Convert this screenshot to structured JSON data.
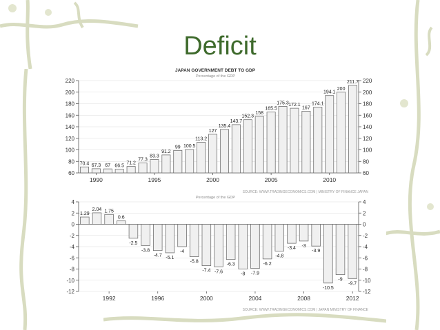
{
  "slide": {
    "title": "Deficit"
  },
  "colors": {
    "title": "#3e6a2c",
    "vine": "#d8dcc0",
    "bar_stroke": "#707070",
    "bar_fill": "#f0f0f0"
  },
  "chart_data": [
    {
      "type": "bar",
      "title": "JAPAN GOVERNMENT DEBT TO GDP",
      "subtitle": "Percentage of the GDP",
      "source": "SOURCE: WWW.TRADINGECONOMICS.COM | MINISTRY OF FINANCE JAPAN",
      "x": [
        1989,
        1990,
        1991,
        1992,
        1993,
        1994,
        1995,
        1996,
        1997,
        1998,
        1999,
        2000,
        2001,
        2002,
        2003,
        2004,
        2005,
        2006,
        2007,
        2008,
        2009,
        2010,
        2011,
        2012
      ],
      "values": [
        70.4,
        67.3,
        67,
        66.5,
        71.2,
        77.3,
        83.3,
        91.2,
        99,
        100.5,
        113.2,
        127,
        135.4,
        143.7,
        152.3,
        158,
        165.5,
        175.3,
        172.1,
        167,
        174.1,
        194.1,
        200,
        211.7
      ],
      "labels": [
        "70.4",
        "67.3",
        "67",
        "66.5",
        "71.2",
        "77.3",
        "83.3",
        "91.2",
        "99",
        "100.5",
        "113.2",
        "127",
        "135.4",
        "143.7",
        "152.3",
        "158",
        "165.5",
        "175.3",
        "172.1",
        "167",
        "174.1",
        "194.1",
        "200",
        "211.7"
      ],
      "xticks": [
        "1990",
        "1995",
        "2000",
        "2005",
        "2010"
      ],
      "xtick_values": [
        1990,
        1995,
        2000,
        2005,
        2010
      ],
      "yticks": [
        "60",
        "80",
        "100",
        "120",
        "140",
        "160",
        "180",
        "200",
        "220"
      ],
      "ylim": [
        60,
        220
      ]
    },
    {
      "type": "bar",
      "title": "",
      "subtitle": "Percentage of the GDP",
      "source": "SOURCE: WWW.TRADINGECONOMICS.COM | JAPAN MINISTRY OF FINANCE",
      "x": [
        1990,
        1991,
        1992,
        1993,
        1994,
        1995,
        1996,
        1997,
        1998,
        1999,
        2000,
        2001,
        2002,
        2003,
        2004,
        2005,
        2006,
        2007,
        2008,
        2009,
        2010,
        2011,
        2012
      ],
      "values": [
        1.29,
        2.04,
        1.75,
        0.6,
        -2.5,
        -3.8,
        -4.7,
        -5.1,
        -4,
        -5.8,
        -7.4,
        -7.6,
        -6.3,
        -8,
        -7.9,
        -6.2,
        -4.8,
        -3.4,
        -3,
        -3.9,
        -10.5,
        -9,
        -9.7
      ],
      "labels": [
        "1.29",
        "2.04",
        "1.75",
        "0.6",
        "-2.5",
        "-3.8",
        "-4.7",
        "-5.1",
        "-4",
        "-5.8",
        "-7.4",
        "-7.6",
        "-6.3",
        "-8",
        "-7.9",
        "-6.2",
        "-4.8",
        "-3.4",
        "-3",
        "-3.9",
        "-10.5",
        "-9",
        "-9.7"
      ],
      "xticks": [
        "1992",
        "1996",
        "2000",
        "2004",
        "2008",
        "2012"
      ],
      "xtick_values": [
        1992,
        1996,
        2000,
        2004,
        2008,
        2012
      ],
      "yticks": [
        "-12",
        "-10",
        "-8",
        "-6",
        "-4",
        "-2",
        "0",
        "2",
        "4"
      ],
      "ylim": [
        -12,
        4
      ]
    }
  ]
}
